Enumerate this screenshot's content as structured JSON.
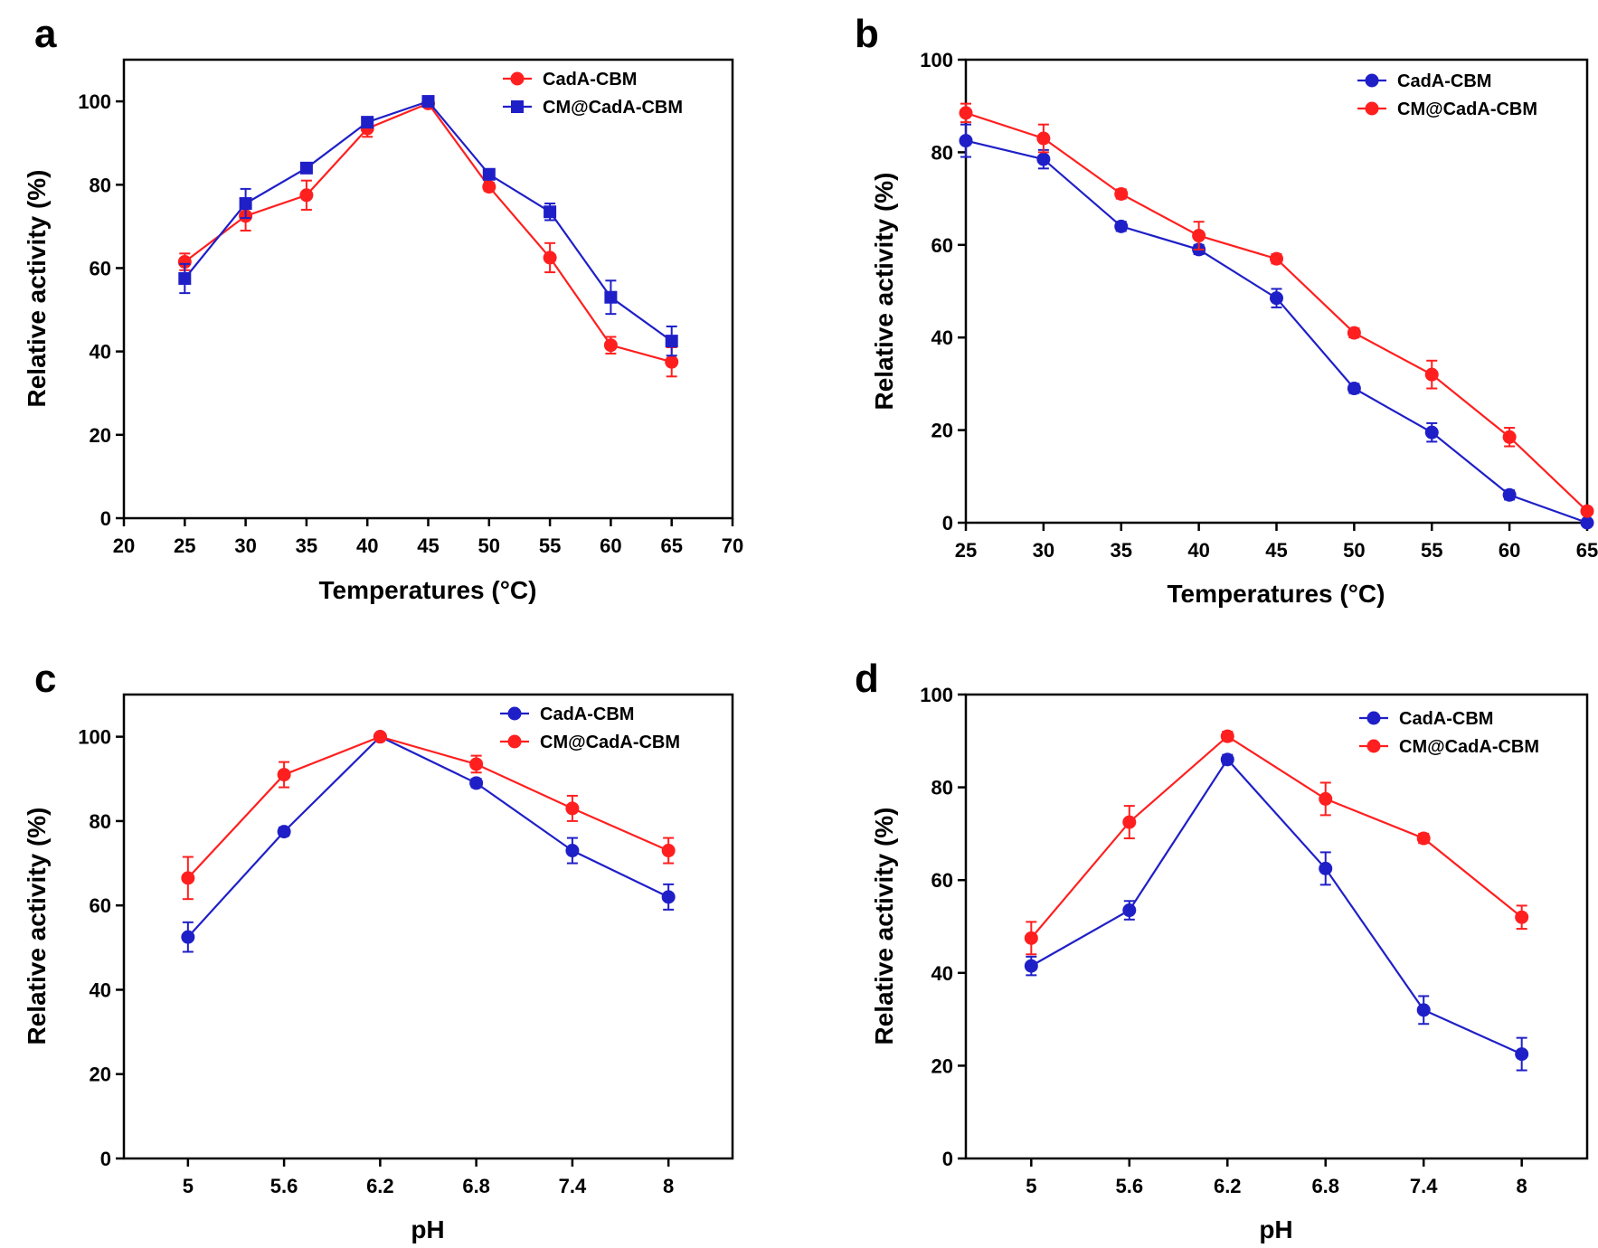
{
  "colors": {
    "red": "#ff1f1f",
    "blue": "#1f1fc8",
    "axis": "#000000"
  },
  "chart_data": [
    {
      "panel": "a",
      "type": "line",
      "xlabel": "Temperatures (°C)",
      "ylabel": "Relative activity (%)",
      "xlim": [
        20,
        70
      ],
      "ylim": [
        0,
        110
      ],
      "xticks": [
        20,
        25,
        30,
        35,
        40,
        45,
        50,
        55,
        60,
        65,
        70
      ],
      "yticks": [
        0,
        20,
        40,
        60,
        80,
        100
      ],
      "legend_position": "top-right",
      "x": [
        25,
        30,
        35,
        40,
        45,
        50,
        55,
        60,
        65
      ],
      "series": [
        {
          "name": "CadA-CBM",
          "color": "red",
          "marker": "circle",
          "values": [
            61.5,
            72.5,
            77.5,
            93.5,
            99.5,
            79.5,
            62.5,
            41.5,
            37.5
          ],
          "errors": [
            2,
            3.5,
            3.5,
            2,
            0.5,
            1,
            3.5,
            2,
            3.5
          ]
        },
        {
          "name": "CM@CadA-CBM",
          "color": "blue",
          "marker": "square",
          "values": [
            57.5,
            75.5,
            84,
            95,
            100,
            82.5,
            73.5,
            53,
            42.5
          ],
          "errors": [
            3.5,
            3.5,
            1,
            1,
            0.5,
            1,
            2,
            4,
            3.5
          ]
        }
      ]
    },
    {
      "panel": "b",
      "type": "line",
      "xlabel": "Temperatures (°C)",
      "ylabel": "Relative activity (%)",
      "xlim": [
        25,
        65
      ],
      "ylim": [
        0,
        100
      ],
      "xticks": [
        25,
        30,
        35,
        40,
        45,
        50,
        55,
        60,
        65
      ],
      "yticks": [
        0,
        20,
        40,
        60,
        80,
        100
      ],
      "legend_position": "top-right",
      "x": [
        25,
        30,
        35,
        40,
        45,
        50,
        55,
        60,
        65
      ],
      "series": [
        {
          "name": "CadA-CBM",
          "color": "blue",
          "marker": "circle",
          "values": [
            82.5,
            78.5,
            64,
            59,
            48.5,
            29,
            19.5,
            6,
            0
          ],
          "errors": [
            3.5,
            2,
            1,
            1,
            2,
            1,
            2,
            1,
            0.5
          ]
        },
        {
          "name": "CM@CadA-CBM",
          "color": "red",
          "marker": "circle",
          "values": [
            88.5,
            83,
            71,
            62,
            57,
            41,
            32,
            18.5,
            2.5
          ],
          "errors": [
            2,
            3,
            1,
            3,
            1,
            1,
            3,
            2,
            0.5
          ]
        }
      ]
    },
    {
      "panel": "c",
      "type": "line",
      "xlabel": "pH",
      "ylabel": "Relative activity (%)",
      "xlim": [
        4.6,
        8.4
      ],
      "ylim": [
        0,
        110
      ],
      "xticks": [
        5,
        5.6,
        6.2,
        6.8,
        7.4,
        8
      ],
      "yticks": [
        0,
        20,
        40,
        60,
        80,
        100
      ],
      "legend_position": "top-right",
      "x": [
        5,
        5.6,
        6.2,
        6.8,
        7.4,
        8
      ],
      "series": [
        {
          "name": "CadA-CBM",
          "color": "blue",
          "marker": "circle",
          "values": [
            52.5,
            77.5,
            100,
            89,
            73,
            62
          ],
          "errors": [
            3.5,
            1,
            0.5,
            1,
            3,
            3
          ]
        },
        {
          "name": "CM@CadA-CBM",
          "color": "red",
          "marker": "circle",
          "values": [
            66.5,
            91,
            100,
            93.5,
            83,
            73
          ],
          "errors": [
            5,
            3,
            0.5,
            2,
            3,
            3
          ]
        }
      ]
    },
    {
      "panel": "d",
      "type": "line",
      "xlabel": "pH",
      "ylabel": "Relative activity (%)",
      "xlim": [
        4.6,
        8.4
      ],
      "ylim": [
        0,
        100
      ],
      "xticks": [
        5,
        5.6,
        6.2,
        6.8,
        7.4,
        8
      ],
      "yticks": [
        0,
        20,
        40,
        60,
        80,
        100
      ],
      "legend_position": "top-right",
      "x": [
        5,
        5.6,
        6.2,
        6.8,
        7.4,
        8
      ],
      "series": [
        {
          "name": "CadA-CBM",
          "color": "blue",
          "marker": "circle",
          "values": [
            41.5,
            53.5,
            86,
            62.5,
            32,
            22.5
          ],
          "errors": [
            2,
            2,
            1,
            3.5,
            3,
            3.5
          ]
        },
        {
          "name": "CM@CadA-CBM",
          "color": "red",
          "marker": "circle",
          "values": [
            47.5,
            72.5,
            91,
            77.5,
            69,
            52
          ],
          "errors": [
            3.5,
            3.5,
            1,
            3.5,
            1,
            2.5
          ]
        }
      ]
    }
  ]
}
